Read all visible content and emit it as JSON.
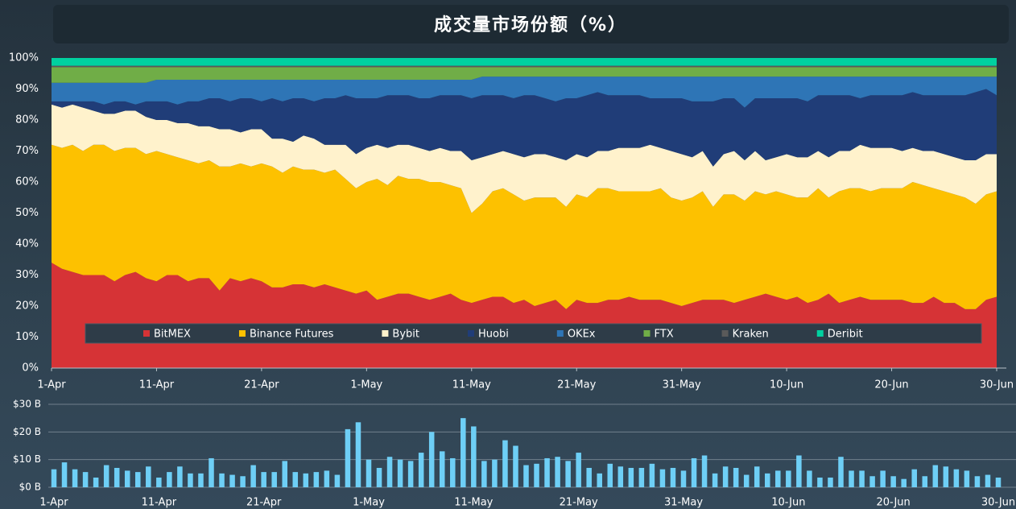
{
  "chart_data": [
    {
      "type": "area",
      "title": "成交量市场份额（%）",
      "stacked": true,
      "legend": "lower center",
      "categories": [
        "1-Apr",
        null,
        null,
        null,
        null,
        null,
        null,
        null,
        null,
        null,
        "11-Apr",
        null,
        null,
        null,
        null,
        null,
        null,
        null,
        null,
        null,
        "21-Apr",
        null,
        null,
        null,
        null,
        null,
        null,
        null,
        null,
        null,
        "1-May",
        null,
        null,
        null,
        null,
        null,
        null,
        null,
        null,
        null,
        "11-May",
        null,
        null,
        null,
        null,
        null,
        null,
        null,
        null,
        null,
        "21-May",
        null,
        null,
        null,
        null,
        null,
        null,
        null,
        null,
        null,
        "31-May",
        null,
        null,
        null,
        null,
        null,
        null,
        null,
        null,
        null,
        "10-Jun",
        null,
        null,
        null,
        null,
        null,
        null,
        null,
        null,
        null,
        "20-Jun",
        null,
        null,
        null,
        null,
        null,
        null,
        null,
        null,
        null,
        "30-Jun"
      ],
      "ylim": [
        0,
        100
      ],
      "yticks": [
        {
          "value": 0,
          "label": "0%"
        },
        {
          "value": 10,
          "label": "10%"
        },
        {
          "value": 20,
          "label": "20%"
        },
        {
          "value": 30,
          "label": "30%"
        },
        {
          "value": 40,
          "label": "40%"
        },
        {
          "value": 50,
          "label": "50%"
        },
        {
          "value": 60,
          "label": "60%"
        },
        {
          "value": 70,
          "label": "70%"
        },
        {
          "value": 80,
          "label": "80%"
        },
        {
          "value": 90,
          "label": "90%"
        },
        {
          "value": 100,
          "label": "100%"
        }
      ],
      "series": [
        {
          "name": "BitMEX",
          "color": "#d63336",
          "values": [
            34,
            32,
            31,
            30,
            30,
            30,
            28,
            30,
            31,
            29,
            28,
            30,
            30,
            28,
            29,
            29,
            25,
            29,
            28,
            29,
            28,
            26,
            26,
            27,
            27,
            26,
            27,
            26,
            25,
            24,
            25,
            22,
            23,
            24,
            24,
            23,
            22,
            23,
            24,
            22,
            21,
            22,
            23,
            23,
            21,
            22,
            20,
            21,
            22,
            19,
            22,
            21,
            21,
            22,
            22,
            23,
            22,
            22,
            22,
            21,
            20,
            21,
            22,
            22,
            22,
            21,
            22,
            23,
            24,
            23,
            22,
            23,
            21,
            22,
            24,
            21,
            22,
            23,
            22,
            22,
            22,
            22,
            21,
            21,
            23,
            21,
            21,
            19,
            19,
            22,
            23
          ]
        },
        {
          "name": "Binance Futures",
          "color": "#fdc100",
          "values": [
            38,
            39,
            41,
            40,
            42,
            42,
            42,
            41,
            40,
            40,
            42,
            39,
            38,
            39,
            37,
            38,
            40,
            36,
            38,
            36,
            38,
            39,
            37,
            38,
            37,
            38,
            36,
            38,
            36,
            34,
            35,
            39,
            36,
            38,
            37,
            38,
            38,
            37,
            35,
            36,
            29,
            31,
            34,
            35,
            35,
            32,
            35,
            34,
            33,
            33,
            34,
            34,
            37,
            36,
            35,
            34,
            35,
            35,
            36,
            34,
            34,
            34,
            35,
            30,
            34,
            35,
            32,
            34,
            32,
            34,
            34,
            32,
            34,
            36,
            31,
            36,
            36,
            35,
            35,
            36,
            36,
            36,
            39,
            38,
            35,
            36,
            35,
            36,
            34,
            34,
            34
          ]
        },
        {
          "name": "Bybit",
          "color": "#fff2cc",
          "values": [
            13,
            13,
            13,
            14,
            11,
            10,
            12,
            12,
            12,
            12,
            10,
            11,
            11,
            12,
            12,
            11,
            12,
            12,
            10,
            12,
            11,
            9,
            11,
            8,
            11,
            10,
            9,
            8,
            11,
            11,
            11,
            11,
            12,
            10,
            11,
            10,
            10,
            11,
            11,
            12,
            17,
            15,
            12,
            12,
            13,
            14,
            14,
            14,
            13,
            15,
            13,
            13,
            12,
            12,
            14,
            14,
            14,
            15,
            13,
            15,
            15,
            13,
            13,
            13,
            13,
            14,
            13,
            13,
            11,
            11,
            13,
            13,
            13,
            12,
            13,
            13,
            12,
            14,
            14,
            13,
            13,
            12,
            11,
            11,
            12,
            12,
            12,
            12,
            14,
            13,
            12
          ]
        },
        {
          "name": "Huobi",
          "color": "#203d78",
          "values": [
            1,
            2,
            1,
            2,
            3,
            3,
            4,
            3,
            2,
            5,
            6,
            6,
            6,
            7,
            8,
            9,
            10,
            9,
            11,
            10,
            9,
            13,
            12,
            14,
            12,
            12,
            15,
            15,
            16,
            18,
            16,
            15,
            17,
            16,
            16,
            16,
            17,
            17,
            18,
            18,
            20,
            20,
            19,
            18,
            18,
            20,
            19,
            18,
            18,
            20,
            18,
            20,
            19,
            18,
            17,
            17,
            17,
            15,
            16,
            17,
            18,
            18,
            16,
            21,
            18,
            17,
            17,
            17,
            20,
            19,
            18,
            19,
            18,
            18,
            20,
            18,
            18,
            15,
            17,
            17,
            17,
            18,
            18,
            18,
            18,
            19,
            20,
            21,
            22,
            21,
            19
          ]
        },
        {
          "name": "OKEx",
          "color": "#2e75b6",
          "values": [
            6,
            6,
            6,
            6,
            6,
            7,
            6,
            6,
            7,
            6,
            7,
            7,
            8,
            7,
            7,
            6,
            6,
            7,
            6,
            6,
            7,
            6,
            7,
            6,
            6,
            7,
            6,
            6,
            5,
            6,
            6,
            6,
            5,
            5,
            5,
            6,
            6,
            5,
            5,
            5,
            6,
            6,
            6,
            6,
            7,
            6,
            6,
            7,
            8,
            7,
            7,
            6,
            5,
            6,
            6,
            6,
            6,
            7,
            7,
            7,
            7,
            8,
            8,
            8,
            7,
            7,
            10,
            7,
            7,
            7,
            7,
            7,
            8,
            6,
            6,
            6,
            6,
            7,
            6,
            6,
            6,
            6,
            5,
            6,
            6,
            6,
            6,
            6,
            5,
            4,
            6
          ]
        },
        {
          "name": "FTX",
          "color": "#70ad47",
          "values": [
            5,
            5,
            5,
            5,
            5,
            5,
            5,
            5,
            5,
            5,
            4,
            4,
            4,
            4,
            4,
            4,
            4,
            4,
            4,
            4,
            4,
            4,
            4,
            4,
            4,
            4,
            4,
            4,
            4,
            4,
            4,
            4,
            4,
            4,
            4,
            4,
            4,
            4,
            4,
            4,
            4,
            3,
            3,
            3,
            3,
            3,
            3,
            3,
            3,
            3,
            3,
            3,
            3,
            3,
            3,
            3,
            3,
            3,
            3,
            3,
            3,
            3,
            3,
            3,
            3,
            3,
            3,
            3,
            3,
            3,
            3,
            3,
            3,
            3,
            3,
            3,
            3,
            3,
            3,
            3,
            3,
            3,
            3,
            3,
            3,
            3,
            3,
            3,
            3,
            3,
            3
          ]
        },
        {
          "name": "Kraken",
          "color": "#5a5a5a",
          "values": [
            0.5,
            0.5,
            0.5,
            0.5,
            0.5,
            0.5,
            0.5,
            0.5,
            0.5,
            0.5,
            0.5,
            0.5,
            0.5,
            0.5,
            0.5,
            0.5,
            0.5,
            0.5,
            0.5,
            0.5,
            0.5,
            0.5,
            0.5,
            0.5,
            0.5,
            0.5,
            0.5,
            0.5,
            0.5,
            0.5,
            0.5,
            0.5,
            0.5,
            0.5,
            0.5,
            0.5,
            0.5,
            0.5,
            0.5,
            0.5,
            0.5,
            0.5,
            0.5,
            0.5,
            0.5,
            0.5,
            0.5,
            0.5,
            0.5,
            0.5,
            0.5,
            0.5,
            0.5,
            0.5,
            0.5,
            0.5,
            0.5,
            0.5,
            0.5,
            0.5,
            0.5,
            0.5,
            0.5,
            0.5,
            0.5,
            0.5,
            0.5,
            0.5,
            0.5,
            0.5,
            0.5,
            0.5,
            0.5,
            0.5,
            0.5,
            0.5,
            0.5,
            0.5,
            0.5,
            0.5,
            0.5,
            0.5,
            0.5,
            0.5,
            0.5,
            0.5,
            0.5,
            0.5,
            0.5,
            0.5,
            0.5
          ]
        },
        {
          "name": "Deribit",
          "color": "#00d1a0",
          "values": [
            2.5,
            2.5,
            2.5,
            2.5,
            2.5,
            2.5,
            2.5,
            2.5,
            2.5,
            2.5,
            2.5,
            2.5,
            2.5,
            2.5,
            2.5,
            2.5,
            2.5,
            2.5,
            2.5,
            2.5,
            2.5,
            2.5,
            2.5,
            2.5,
            2.5,
            2.5,
            2.5,
            2.5,
            2.5,
            2.5,
            2.5,
            2.5,
            2.5,
            2.5,
            2.5,
            2.5,
            2.5,
            2.5,
            2.5,
            2.5,
            2.5,
            2.5,
            2.5,
            2.5,
            2.5,
            2.5,
            2.5,
            2.5,
            2.5,
            2.5,
            2.5,
            2.5,
            2.5,
            2.5,
            2.5,
            2.5,
            2.5,
            2.5,
            2.5,
            2.5,
            2.5,
            2.5,
            2.5,
            2.5,
            2.5,
            2.5,
            2.5,
            2.5,
            2.5,
            2.5,
            2.5,
            2.5,
            2.5,
            2.5,
            2.5,
            2.5,
            2.5,
            2.5,
            2.5,
            2.5,
            2.5,
            2.5,
            2.5,
            2.5,
            2.5,
            2.5,
            2.5,
            2.5,
            2.5,
            2.5,
            2.5
          ]
        }
      ]
    },
    {
      "type": "bar",
      "color": "#6ecff6",
      "grid": true,
      "categories": [
        "1-Apr",
        null,
        null,
        null,
        null,
        null,
        null,
        null,
        null,
        null,
        "11-Apr",
        null,
        null,
        null,
        null,
        null,
        null,
        null,
        null,
        null,
        "21-Apr",
        null,
        null,
        null,
        null,
        null,
        null,
        null,
        null,
        null,
        "1-May",
        null,
        null,
        null,
        null,
        null,
        null,
        null,
        null,
        null,
        "11-May",
        null,
        null,
        null,
        null,
        null,
        null,
        null,
        null,
        null,
        "21-May",
        null,
        null,
        null,
        null,
        null,
        null,
        null,
        null,
        null,
        "31-May",
        null,
        null,
        null,
        null,
        null,
        null,
        null,
        null,
        null,
        "10-Jun",
        null,
        null,
        null,
        null,
        null,
        null,
        null,
        null,
        null,
        "20-Jun",
        null,
        null,
        null,
        null,
        null,
        null,
        null,
        null,
        null,
        "30-Jun"
      ],
      "values": [
        6.5,
        9,
        6.5,
        5.5,
        3.5,
        8,
        7,
        6,
        5.5,
        7.5,
        3.5,
        5.5,
        7.5,
        5,
        5,
        10.5,
        5,
        4.5,
        4,
        8,
        5.5,
        5.5,
        9.5,
        5.5,
        5,
        5.5,
        6,
        4.5,
        21,
        23.5,
        10,
        7,
        11,
        10,
        9.5,
        12.5,
        20,
        13,
        10.5,
        25,
        22,
        9.5,
        10,
        17,
        15,
        8,
        8.5,
        10.5,
        11,
        9.5,
        12.5,
        7,
        5,
        8.5,
        7.5,
        7,
        7,
        8.5,
        6.5,
        7,
        6,
        10.5,
        11.5,
        5,
        7.5,
        7,
        4.5,
        7.5,
        5,
        6,
        6,
        11.5,
        6,
        3.5,
        3.5,
        11,
        6,
        6,
        4,
        6,
        4,
        3,
        6.5,
        4,
        8,
        7.5,
        6.5,
        6,
        4,
        4.5,
        3.5
      ],
      "ylim": [
        0,
        30
      ],
      "yticks": [
        {
          "value": 0,
          "label": "$0 B"
        },
        {
          "value": 10,
          "label": "$10 B"
        },
        {
          "value": 20,
          "label": "$20 B"
        },
        {
          "value": 30,
          "label": "$30 B"
        }
      ]
    }
  ]
}
